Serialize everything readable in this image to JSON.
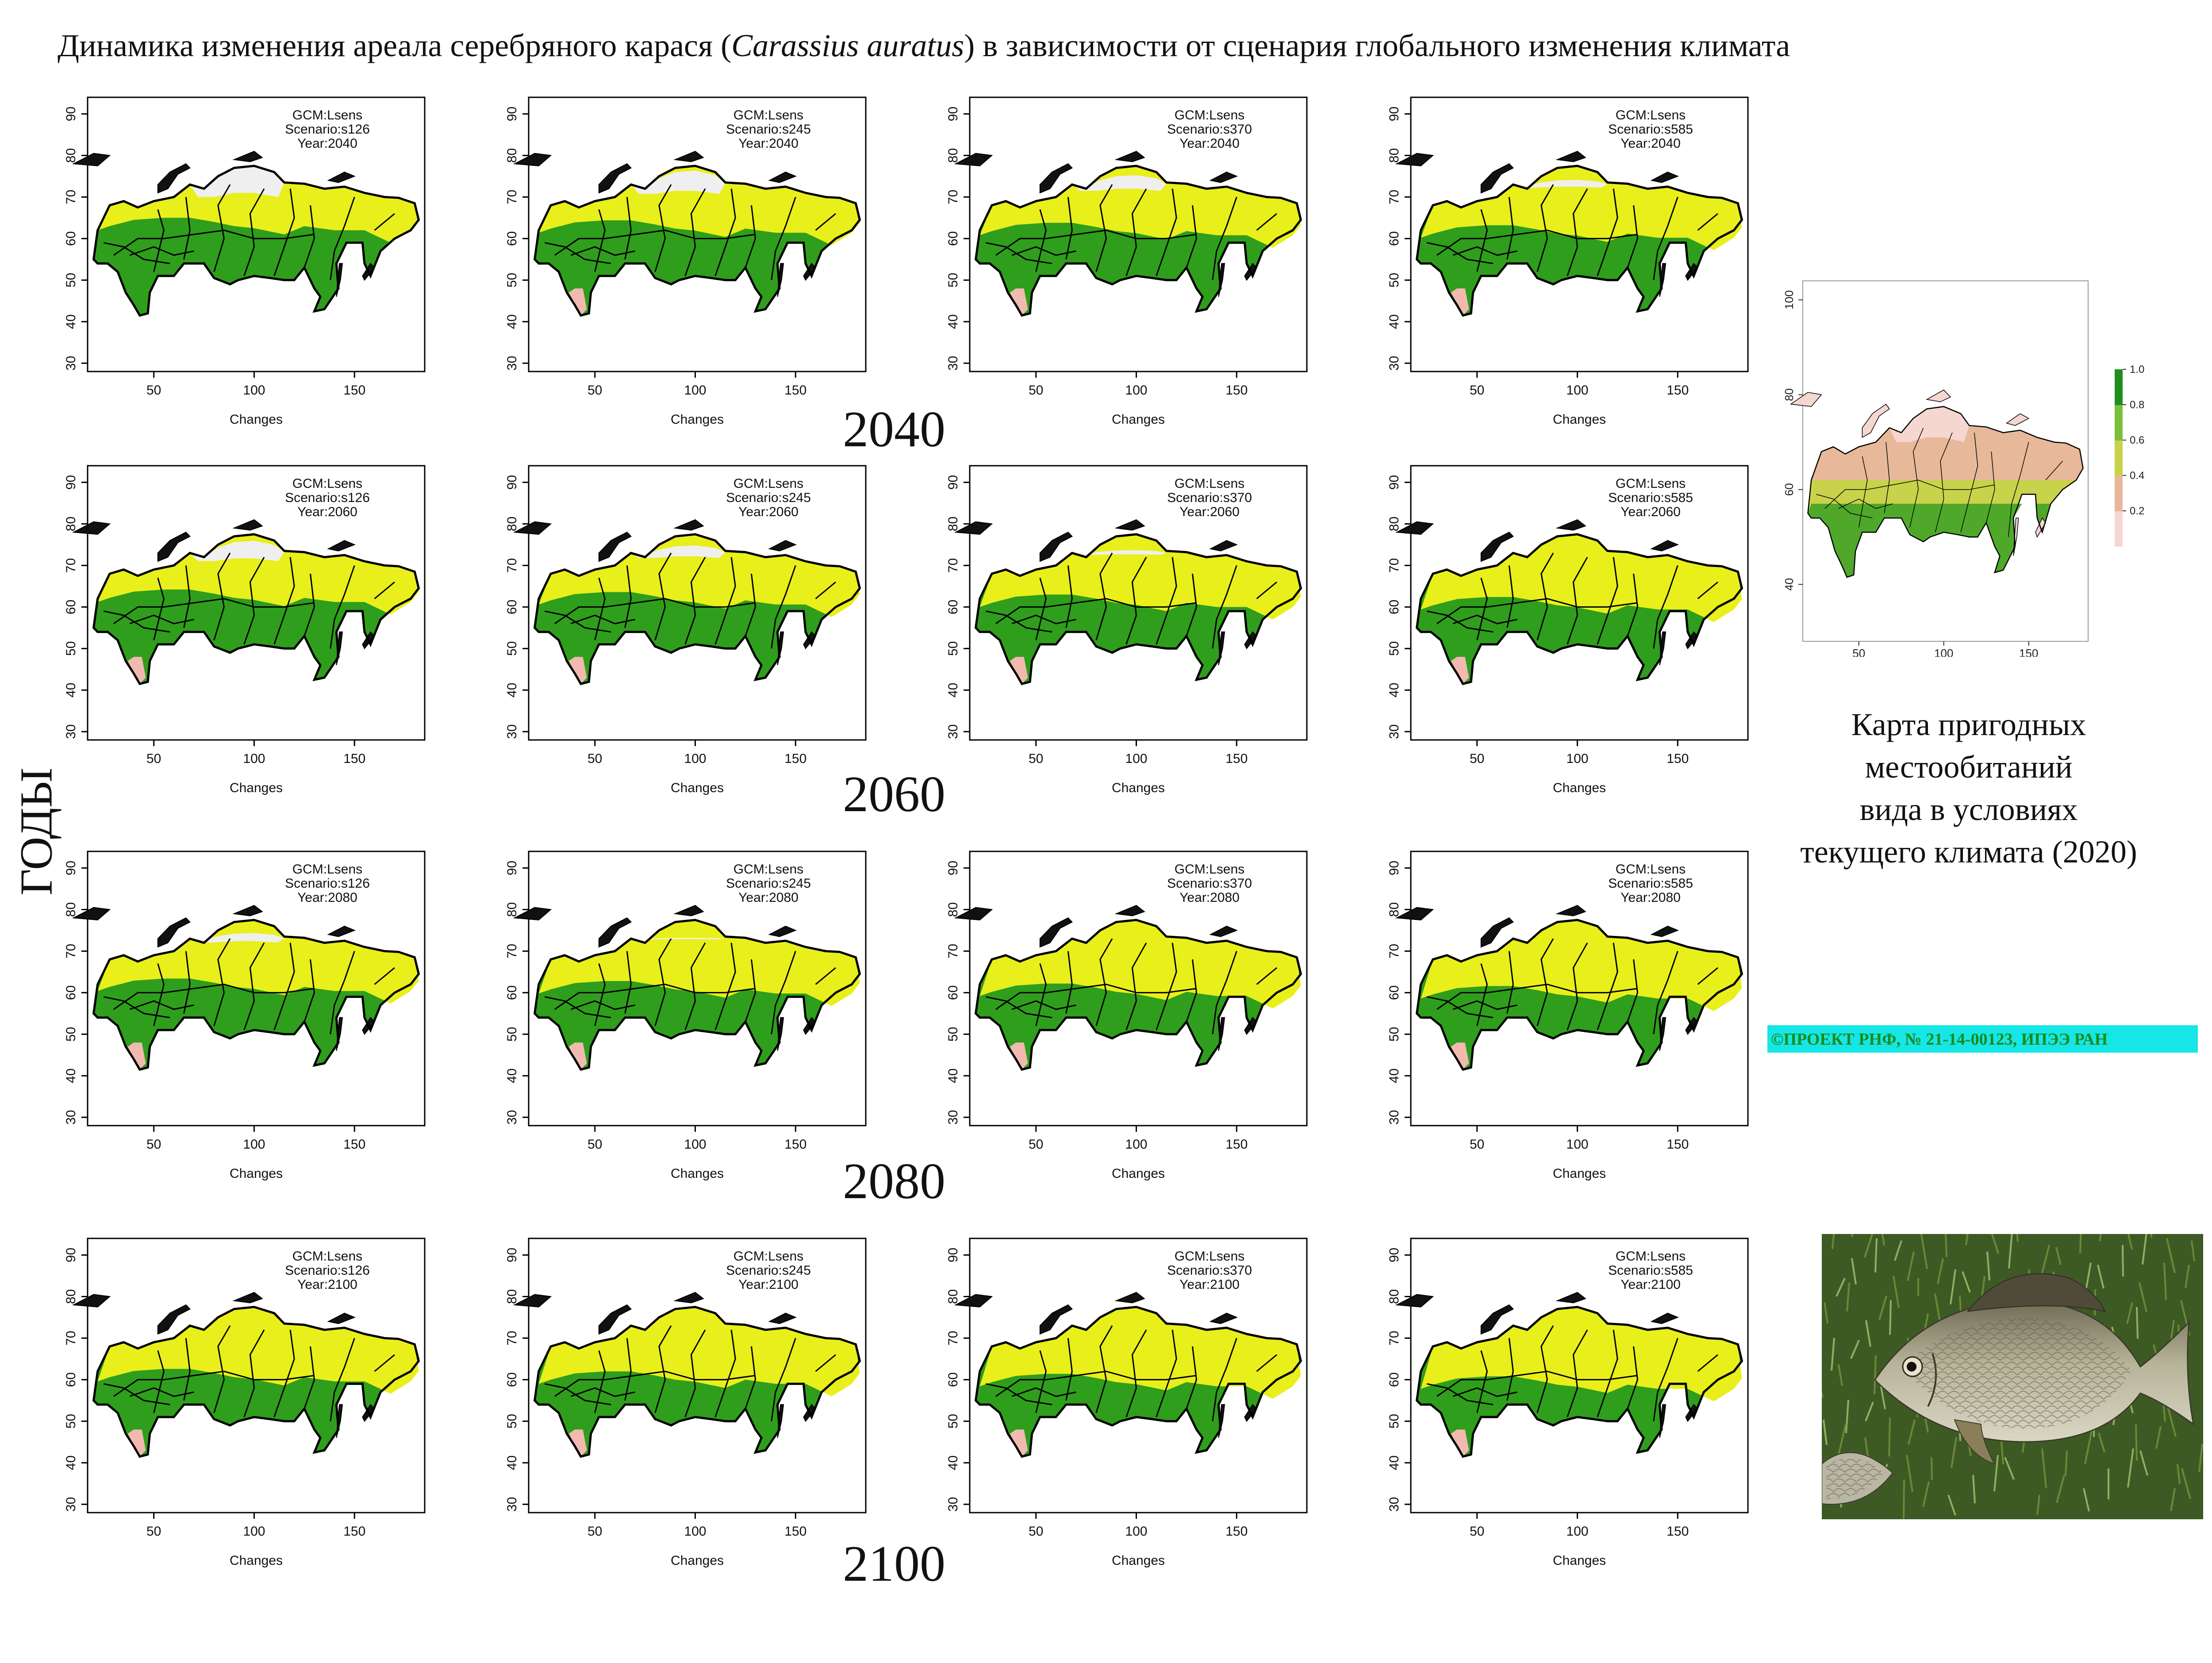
{
  "title": {
    "before": "Динамика изменения ареала серебряного карася (",
    "italic": "Carassius auratus",
    "after": ") в зависимости от сценария глобального изменения климата"
  },
  "years_axis_label": "ГОДЫ",
  "years": [
    "2040",
    "2060",
    "2080",
    "2100"
  ],
  "scenarios": [
    "s126",
    "s245",
    "s370",
    "s585"
  ],
  "gcm": "Lsens",
  "map_labels": {
    "gcm_prefix": "GCM:",
    "scenario_prefix": "Scenario:",
    "year_prefix": "Year:",
    "xlabel": "Changes",
    "x_ticks": [
      "50",
      "100",
      "150"
    ],
    "y_ticks": [
      "30",
      "40",
      "50",
      "60",
      "70",
      "80",
      "90"
    ]
  },
  "current_map": {
    "x_ticks": [
      "50",
      "100",
      "150"
    ],
    "y_ticks": [
      "40",
      "60",
      "80",
      "100"
    ],
    "legend_ticks": [
      "1.0",
      "0.8",
      "0.6",
      "0.4",
      "0.2"
    ],
    "legend_colors": [
      "#f5d6d0",
      "#e8b89a",
      "#c8d24a",
      "#7cc03a",
      "#1e8f1e"
    ],
    "caption": [
      "Карта пригодных",
      "местообитаний",
      "вида в условиях",
      "текущего климата (2020)"
    ]
  },
  "credit": "©ПРОЕКТ РНФ, № 21-14-00123, ИПЭЭ РАН",
  "colors": {
    "green": "#2f9e1c",
    "yellow": "#e9ef1a",
    "gray": "#efefef",
    "pink": "#f2b9b0",
    "credit_bg": "#16e6e6",
    "credit_fg": "#1a8a1a"
  }
}
